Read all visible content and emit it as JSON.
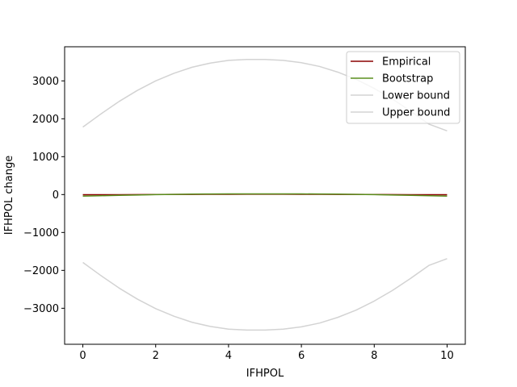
{
  "chart_data": {
    "type": "line",
    "title": "",
    "xlabel": "IFHPOL",
    "ylabel": "IFHPOL change",
    "xlim": [
      -0.5,
      10.5
    ],
    "ylim": [
      -3950,
      3900
    ],
    "xticks": [
      0,
      2,
      4,
      6,
      8,
      10
    ],
    "xtick_labels": [
      "0",
      "2",
      "4",
      "6",
      "8",
      "10"
    ],
    "yticks": [
      -3000,
      -2000,
      -1000,
      0,
      1000,
      2000,
      3000
    ],
    "ytick_labels": [
      "−3000",
      "−2000",
      "−1000",
      "0",
      "1000",
      "2000",
      "3000"
    ],
    "grid": false,
    "legend_position": "top-right",
    "x": [
      0,
      0.5,
      1,
      1.5,
      2,
      2.5,
      3,
      3.5,
      4,
      4.5,
      5,
      5.5,
      6,
      6.5,
      7,
      7.5,
      8,
      8.5,
      9,
      9.5,
      10
    ],
    "series": [
      {
        "name": "Empirical",
        "color": "#8b0000",
        "values": [
          -5,
          -4,
          -3,
          -1,
          1,
          3,
          5,
          7,
          8,
          9,
          9,
          9,
          8,
          7,
          5,
          3,
          1,
          -1,
          -3,
          -4,
          -5
        ]
      },
      {
        "name": "Bootstrap",
        "color": "#5a8f1e",
        "values": [
          -40,
          -30,
          -20,
          -11,
          -2,
          5,
          11,
          15,
          17,
          18,
          18,
          18,
          17,
          15,
          11,
          5,
          -2,
          -11,
          -20,
          -30,
          -40
        ]
      },
      {
        "name": "Lower bound",
        "color": "#d3d3d3",
        "values": [
          1780,
          2130,
          2460,
          2750,
          3000,
          3200,
          3360,
          3470,
          3540,
          3565,
          3565,
          3540,
          3480,
          3380,
          3230,
          3040,
          2800,
          2520,
          2200,
          1860,
          1680
        ]
      },
      {
        "name": "Upper bound",
        "color": "#d3d3d3",
        "values": [
          -1790,
          -2140,
          -2470,
          -2760,
          -3010,
          -3210,
          -3370,
          -3480,
          -3550,
          -3575,
          -3575,
          -3550,
          -3490,
          -3390,
          -3240,
          -3050,
          -2810,
          -2530,
          -2210,
          -1870,
          -1690
        ]
      }
    ]
  }
}
